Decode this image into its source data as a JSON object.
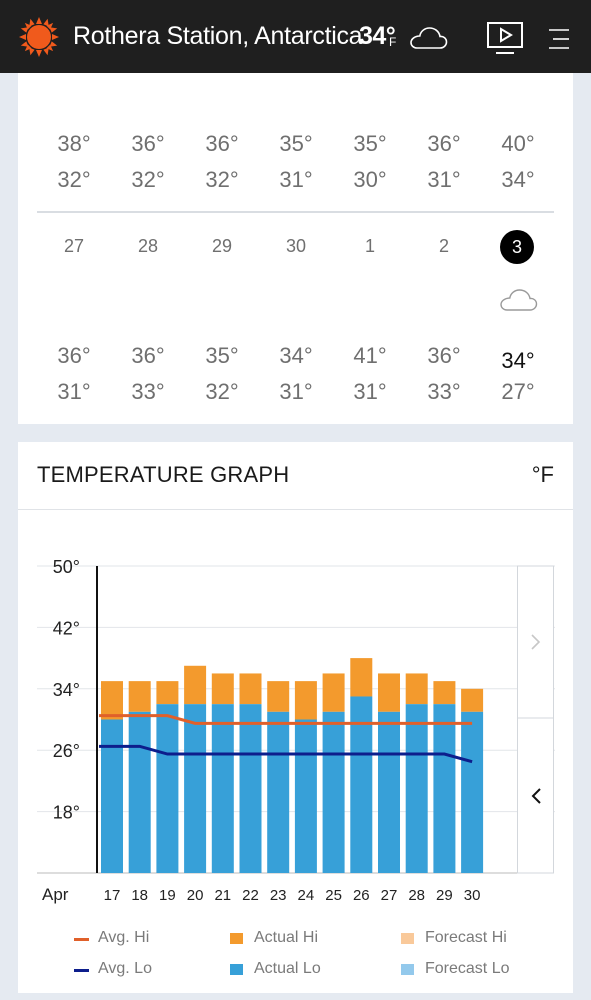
{
  "header": {
    "location": "Rothera Station, Antarctica",
    "current_temp": "34°",
    "current_unit": "F",
    "icons": [
      "sun-icon",
      "cloud-icon",
      "video-icon",
      "menu-icon"
    ]
  },
  "calendar": {
    "prev_week": {
      "highs": [
        "38°",
        "36°",
        "36°",
        "35°",
        "35°",
        "36°",
        "40°"
      ],
      "lows": [
        "32°",
        "32°",
        "32°",
        "31°",
        "30°",
        "31°",
        "34°"
      ]
    },
    "days": [
      "27",
      "28",
      "29",
      "30",
      "1",
      "2",
      "3"
    ],
    "today_index": 6,
    "week": {
      "highs": [
        "36°",
        "36°",
        "35°",
        "34°",
        "41°",
        "36°",
        "34°"
      ],
      "lows": [
        "31°",
        "33°",
        "32°",
        "31°",
        "31°",
        "33°",
        "27°"
      ]
    }
  },
  "graph": {
    "title": "TEMPERATURE GRAPH",
    "unit": "°F"
  },
  "chart_data": {
    "type": "bar",
    "month_label": "Apr",
    "categories": [
      "17",
      "18",
      "19",
      "20",
      "21",
      "22",
      "23",
      "24",
      "25",
      "26",
      "27",
      "28",
      "29",
      "30"
    ],
    "y_ticks": [
      "50°",
      "42°",
      "34°",
      "26°",
      "18°"
    ],
    "ylim": [
      10,
      50
    ],
    "series": [
      {
        "name": "Actual Hi",
        "values": [
          35,
          35,
          35,
          37,
          36,
          36,
          35,
          35,
          36,
          38,
          36,
          36,
          35,
          34
        ],
        "color": "#f39a2d"
      },
      {
        "name": "Actual Lo",
        "values": [
          30,
          31,
          32,
          32,
          32,
          32,
          31,
          30,
          31,
          33,
          31,
          32,
          32,
          31
        ],
        "color": "#37a0d8"
      },
      {
        "name": "Avg. Hi",
        "values": [
          30.5,
          30.5,
          30.5,
          29.5,
          29.5,
          29.5,
          29.5,
          29.5,
          29.5,
          29.5,
          29.5,
          29.5,
          29.5,
          29.5
        ],
        "color": "#e0602a"
      },
      {
        "name": "Avg. Lo",
        "values": [
          26.5,
          26.5,
          25.5,
          25.5,
          25.5,
          25.5,
          25.5,
          25.5,
          25.5,
          25.5,
          25.5,
          25.5,
          25.5,
          24.5
        ],
        "color": "#0d1e8c"
      }
    ],
    "legend": [
      {
        "label": "Avg. Hi",
        "kind": "line",
        "color": "#e0602a"
      },
      {
        "label": "Actual Hi",
        "kind": "box",
        "color": "#f39a2d"
      },
      {
        "label": "Forecast Hi",
        "kind": "box",
        "color": "#f9c99a"
      },
      {
        "label": "Avg. Lo",
        "kind": "line",
        "color": "#0d1e8c"
      },
      {
        "label": "Actual Lo",
        "kind": "box",
        "color": "#37a0d8"
      },
      {
        "label": "Forecast Lo",
        "kind": "box",
        "color": "#93c9ec"
      }
    ],
    "grid": true
  }
}
